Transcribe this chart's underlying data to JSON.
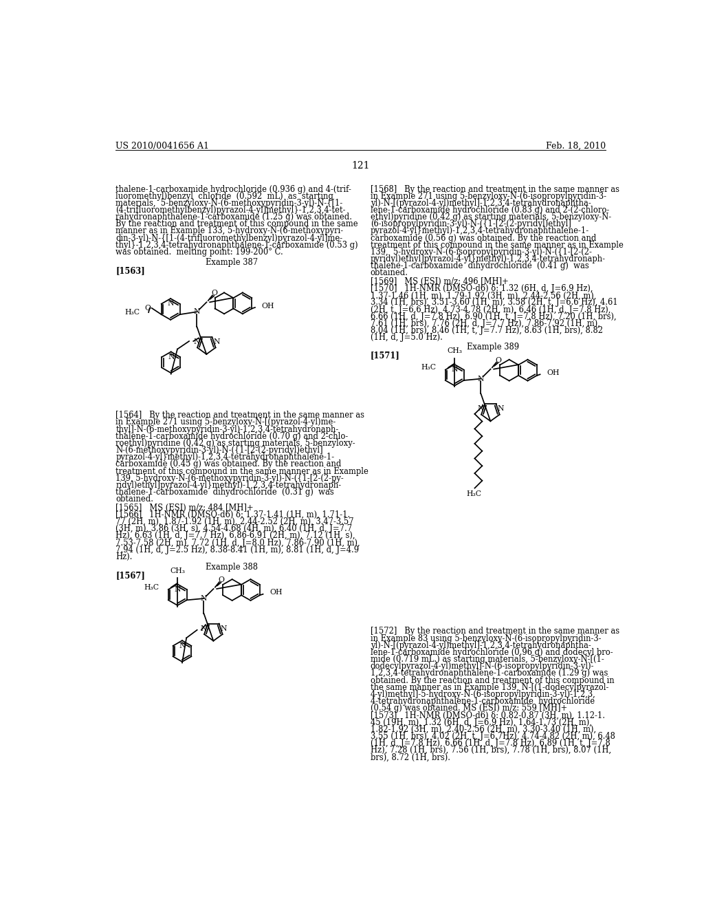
{
  "background_color": "#ffffff",
  "header_left": "US 2010/0041656 A1",
  "header_right": "Feb. 18, 2010",
  "page_number": "121",
  "left_col_top": [
    "thalene-1-carboxamide hydrochloride (0.936 g) and 4-(trif-",
    "luoromethyl)benzyl  chloride  (0.592  mL)  as  starting",
    "materials,  5-benzyloxy-N-(6-methoxypyridin-3-yl)-N-{[1-",
    "(4-trifluoromethylbenzyl)pyrazol-4-yl]methyl}-1,2,3,4-tet-",
    "rahydronaphthalene-1-carboxamide (1.25 g) was obtained.",
    "By the reaction and treatment of this compound in the same",
    "manner as in Example 133, 5-hydroxy-N-(6-methoxypyri-",
    "din-3-yl)-N-{[1-(4-trifluoromethylbenzyl)pyrazol-4-yl]me-",
    "thyl}-1,2,3,4-tetrahydronaphthalene-1-carboxamide (0.53 g)",
    "was obtained.  melting point: 199-200° C."
  ],
  "example_387": "Example 387",
  "para_1563": "[1563]",
  "right_col_top": [
    "[1568]   By the reaction and treatment in the same manner as",
    "in Example 271 using 5-benzyloxy-N-(6-isopropylpyridin-3-",
    "yl)-N-[(pyrazol-4-yl)methyl]-1,2,3,4-tetrahydronaphtha-",
    "lene-1-carboxamide hydrochloride (0.83 g) and 2-(2-chloro-",
    "ethyl)pyridine (0.42 g) as starting materials, 5-benzyloxy-N-",
    "(6-isopropylpyridin-3-yl)-N-({1-[2-(2-pyridyl)ethyl]",
    "pyrazol-4-yl}methyl)-1,2,3,4-tetrahydronaphthalene-1-",
    "carboxamide (0.56 g) was obtained. By the reaction and",
    "treatment of this compound in the same manner as in Example",
    "139,  5-hydroxy-N-(6-isopropylpyridin-3-yl)-N-({1-[2-(2-",
    "pyridyl)ethyl]pyrazol-4-yl}methyl)-1,2,3,4-tetrahydronaph-",
    "thalene-1-carboxamide  dihydrochloride  (0.41 g)  was",
    "obtained."
  ],
  "para_1569": "[1569]   MS (ESI) m/z: 496 [MH]+",
  "para_1570_lines": [
    "[1570]   1H-NMR (DMSO-d6) δ: 1.32 (6H, d, J=6.9 Hz),",
    "1.37-1.46 (1H, m), 1.79-1.92 (3H, m), 2.44-2.56 (2H, m),",
    "3.34 (1H, brs), 3.51-3.60 (1H, m), 3.58 (2H, t, J=6.6 Hz), 4.61",
    "(2H, t, J=6.6 Hz), 4.73-4.78 (2H, m), 6.46 (1H, d, J=7.8 Hz),",
    "6.66 (1H, d, J=7.8 Hz), 6.90 (1H, t, J=7.8 Hz), 7.20 (1H, brs),",
    "7.61 (1H, brs), 7.76 (2H, d, J=7.7 Hz), 7.86-7.92 (1H, m),",
    "8.04 (1H, brs), 8.46 (1H, t, J=7.7 Hz), 8.63 (1H, brs), 8.82",
    "(1H, d, J=5.0 Hz)."
  ],
  "example_389": "Example 389",
  "para_1571": "[1571]",
  "left_col_mid": [
    "[1564]   By the reaction and treatment in the same manner as",
    "in Example 271 using 5-benzyloxy-N-[(pyrazol-4-yl)me-",
    "thyl]-N-(6-methoxypyridin-3-yl)-1,2,3,4-tetrahydronaph-",
    "thalene-1-carboxamide hydrochloride (0.70 g) and 2-chlo-",
    "roethyl)pyridine (0.42 g) as starting materials, 5-benzyloxy-",
    "N-(6-methoxypyridin-3-yl)-N-({1-[2-(2-pyridyl)ethyl]",
    "pyrazol-4-yl}methyl)-1,2,3,4-tetrahydronaphthalene-1-",
    "carboxamide (0.45 g) was obtained. By the reaction and",
    "treatment of this compound in the same manner as in Example",
    "139, 5-hydroxy-N-(6-methoxypyridin-3-yl)-N-({1-[2-(2-py-",
    "ridyl)ethyl]pyrazol-4-yl}methyl)-1,2,3,4-tetrahydronaph-",
    "thalene-1-carboxamide  dihydrochloride  (0.31 g)  was",
    "obtained."
  ],
  "para_1565": "[1565]   MS (ESI) m/z: 484 [MH]+",
  "para_1566_lines": [
    "[1566]   1H-NMR (DMSO-d6) δ: 1.37-1.41 (1H, m), 1.71-1.",
    "77 (2H, m), 1.87-1.92 (1H, m), 2.44-2.52 (2H, m), 3.47-3.57",
    "(3H, m), 3.86 (3H, s), 4.54-4.68 (4H, m), 6.40 (1H, d, J=7.7",
    "Hz), 6.63 (1H, d, J=7.7 Hz), 6.86-6.91 (2H, m), 7.12 (1H, s),",
    "7.53-7.58 (2H, m), 7.72 (1H, d, J=8.0 Hz), 7.86-7.90 (1H, m),",
    "7.94 (1H, d, J=2.5 Hz), 8.38-8.41 (1H, m), 8.81 (1H, d, J=4.9",
    "Hz)."
  ],
  "example_388": "Example 388",
  "para_1567": "[1567]",
  "right_col_bot": [
    "[1572]   By the reaction and treatment in the same manner as",
    "in Example 83 using 5-benzyloxy-N-(6-isopropylpyridin-3-",
    "yl)-N-[(pyrazol-4-yl)methyl]-1,2,3,4-tetrahydronaphtha-",
    "lene-1-carboxamide hydrochloride (0.96 g) and dodecyl bro-",
    "mide (0.719 mL.) as starting materials, 5-benzyloxy-N-[(1-",
    "dodecylpyrazol-4-yl)methyl]-N-(6-isopropylpyridin-3-yl)-",
    "1,2,3,4-tetrahydronaphthalene-1-carboxamide (1.29 g) was",
    "obtained. By the reaction and treatment of this compound in",
    "the same manner as in Example 139, N-[(1-dodecylpyrazol-",
    "4-yl)methyl]-5-hydroxy-N-(6-isopropylpyridin-3-yl)-1,2,3,",
    "4-tetrahydronaphthalene-1-carboxamide  hydrochloride",
    "(0.54 g) was obtained. MS (ESI) m/z: 559 [MH]+",
    "[1573]   1H-NMR (DMSO-d6) δ: 0.82-0.87 (3H, m), 1.12-1.",
    "45 (19H, m), 1.32 (6H, d, J=6.9 Hz), 1.64-1.73 (2H, m),",
    "1.82-1.92 (3H, m), 2.40-2.56 (2H, m), 3.30-3.40 (1H, m),",
    "3.55 (1H, brs), 4.02 (2H, t, J=6.7Hz), 4.74-4.82 (2H, m), 6.48",
    "(1H, d, J=7.8 Hz), 6.66 (1H, d, J=7.8 Hz), 6.89 (1H, t, J=7.8",
    "Hz), 7.28 (1H, brs), 7.56 (1H, brs), 7.78 (1H, brs), 8.07 (1H,",
    "brs), 8.72 (1H, brs)."
  ]
}
